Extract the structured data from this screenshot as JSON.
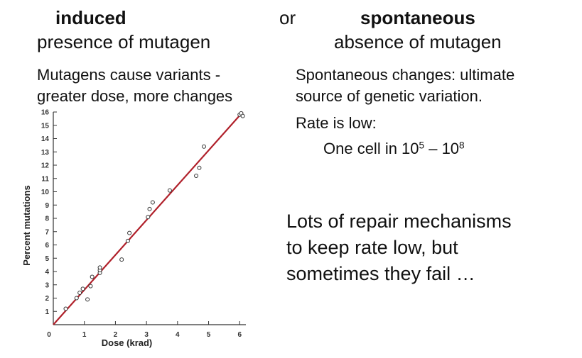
{
  "left": {
    "heading": "induced",
    "subheading": "presence of mutagen",
    "line1": "Mutagens cause variants -",
    "line2": "greater dose, more changes"
  },
  "connector": "or",
  "right": {
    "heading": "spontaneous",
    "subheading": "absence of mutagen",
    "line1": "Spontaneous changes: ultimate",
    "line2": "source of genetic variation.",
    "rate_label": "Rate is low:",
    "rate_prefix": "One cell in 10",
    "rate_exp1": "5",
    "rate_dash": " – 10",
    "rate_exp2": "8",
    "repair1": "Lots of repair mechanisms",
    "repair2": "to keep rate low, but",
    "repair3": "sometimes they fail …"
  },
  "chart_data": {
    "type": "scatter",
    "xlabel": "Dose (krad)",
    "ylabel": "Percent mutations",
    "xlim": [
      0,
      6.2
    ],
    "ylim": [
      0,
      16
    ],
    "xticks": [
      0,
      1,
      2,
      3,
      4,
      5,
      6
    ],
    "yticks": [
      1,
      2,
      3,
      4,
      5,
      6,
      7,
      8,
      9,
      10,
      11,
      12,
      13,
      14,
      15,
      16
    ],
    "grid": false,
    "points": [
      {
        "x": 0.4,
        "y": 1.2
      },
      {
        "x": 0.75,
        "y": 2.0
      },
      {
        "x": 0.85,
        "y": 2.4
      },
      {
        "x": 0.95,
        "y": 2.7
      },
      {
        "x": 1.1,
        "y": 1.9
      },
      {
        "x": 1.2,
        "y": 2.9
      },
      {
        "x": 1.25,
        "y": 3.6
      },
      {
        "x": 1.5,
        "y": 3.9
      },
      {
        "x": 1.5,
        "y": 4.1
      },
      {
        "x": 1.5,
        "y": 4.3
      },
      {
        "x": 2.2,
        "y": 4.9
      },
      {
        "x": 2.4,
        "y": 6.3
      },
      {
        "x": 2.45,
        "y": 6.9
      },
      {
        "x": 3.05,
        "y": 8.1
      },
      {
        "x": 3.1,
        "y": 8.7
      },
      {
        "x": 3.2,
        "y": 9.2
      },
      {
        "x": 3.75,
        "y": 10.1
      },
      {
        "x": 4.6,
        "y": 11.2
      },
      {
        "x": 4.7,
        "y": 11.8
      },
      {
        "x": 4.85,
        "y": 13.4
      },
      {
        "x": 6.0,
        "y": 15.8
      },
      {
        "x": 6.05,
        "y": 15.9
      },
      {
        "x": 6.1,
        "y": 15.7
      }
    ],
    "fit_line": {
      "x0": 0,
      "y0": 0,
      "x1": 6.1,
      "y1": 16.0
    },
    "colors": {
      "fit_line": "#b0202a",
      "points": "#333333",
      "axis": "#333333"
    }
  }
}
